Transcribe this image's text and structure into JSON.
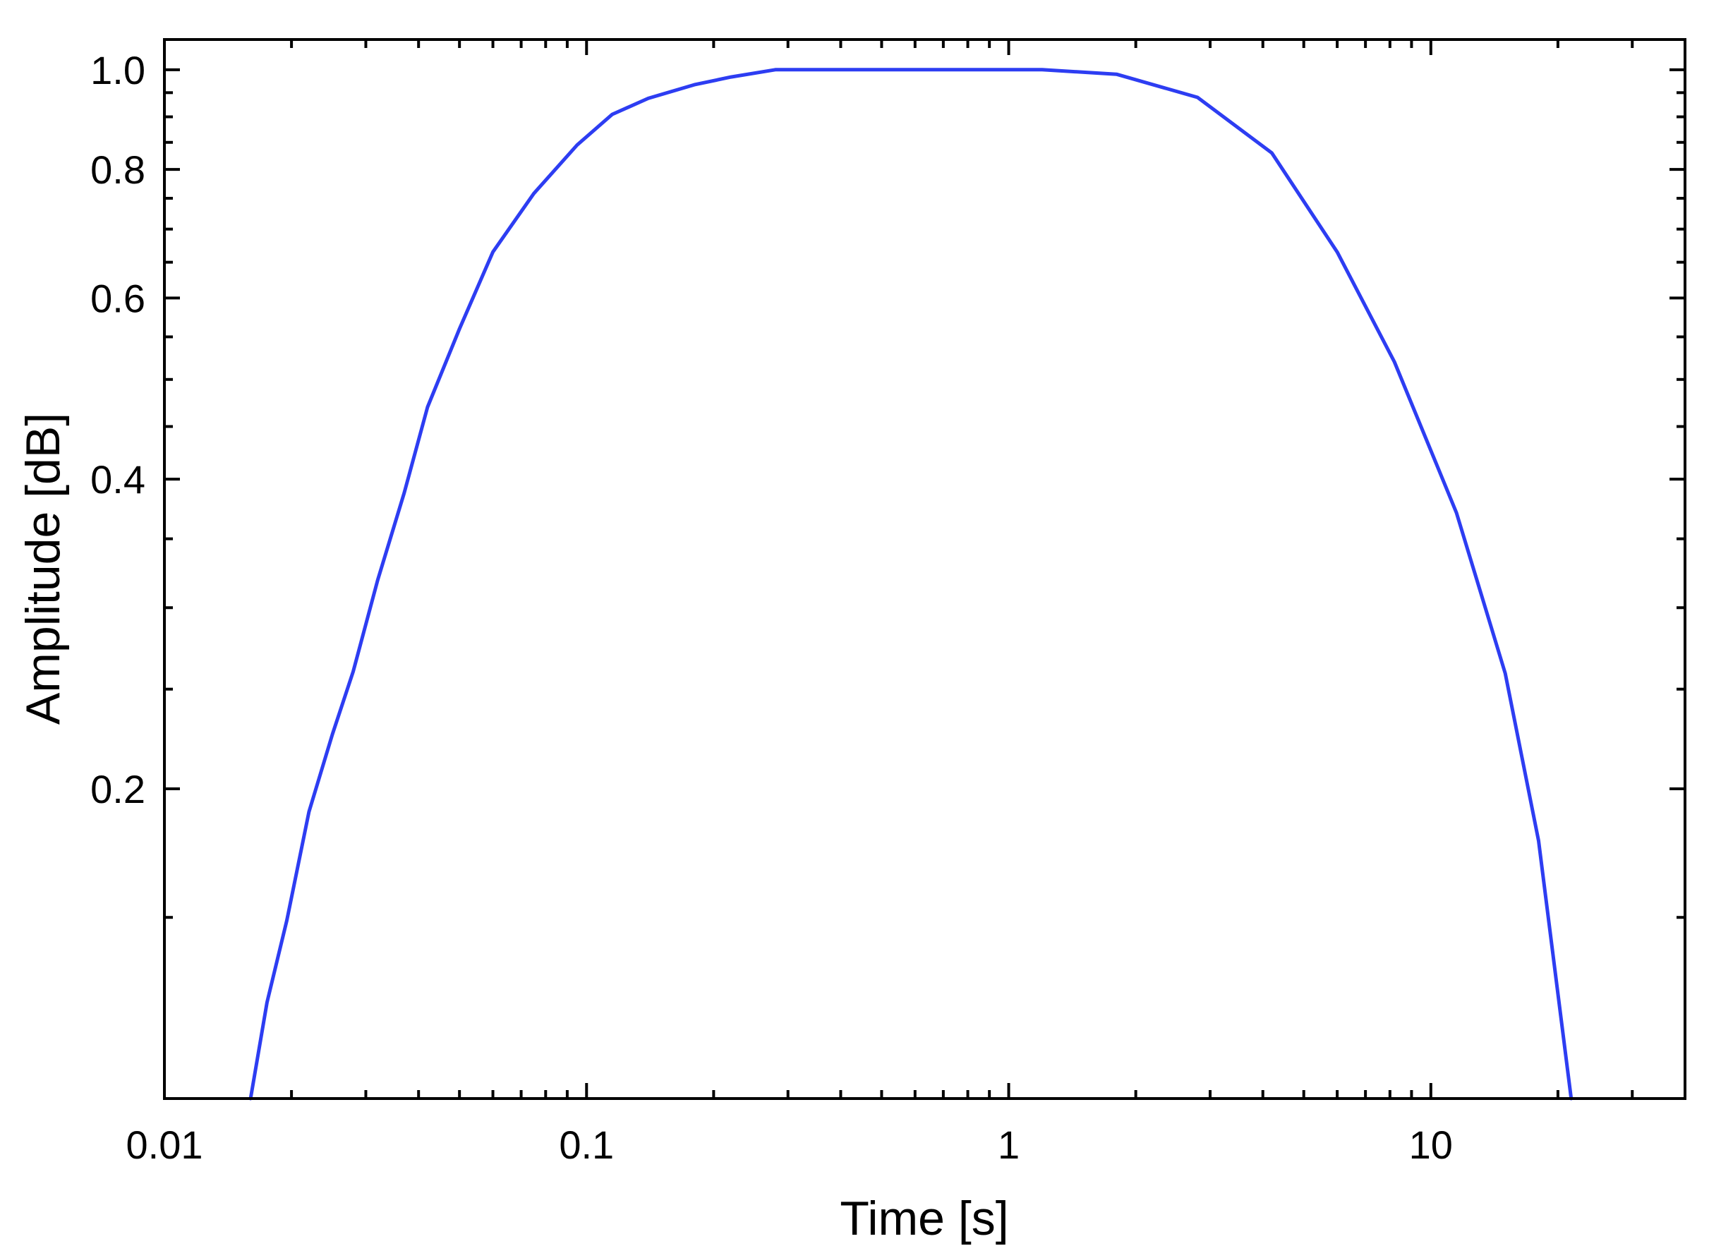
{
  "chart_data": {
    "type": "line",
    "title": "",
    "xlabel": "Time [s]",
    "ylabel": "Amplitude [dB]",
    "xscale": "log",
    "yscale": "log",
    "xlim": [
      0.01,
      40
    ],
    "ylim": [
      0.1,
      1.07
    ],
    "x_ticks": [
      {
        "value": 0.01,
        "label": "0.01"
      },
      {
        "value": 0.1,
        "label": "0.1"
      },
      {
        "value": 1,
        "label": "1"
      },
      {
        "value": 10,
        "label": "10"
      }
    ],
    "y_ticks": [
      {
        "value": 0.2,
        "label": "0.2"
      },
      {
        "value": 0.4,
        "label": "0.4"
      },
      {
        "value": 0.6,
        "label": "0.6"
      },
      {
        "value": 0.8,
        "label": "0.8"
      },
      {
        "value": 1.0,
        "label": "1.0"
      }
    ],
    "y_minor_ticks": [
      0.1,
      0.15,
      0.25,
      0.3,
      0.35,
      0.45,
      0.5,
      0.55,
      0.65,
      0.7,
      0.75,
      0.85,
      0.9,
      0.95
    ],
    "grid": false,
    "series": [
      {
        "color": "#2d3df2",
        "x": [
          0.016,
          0.0175,
          0.0195,
          0.022,
          0.025,
          0.028,
          0.032,
          0.037,
          0.042,
          0.05,
          0.06,
          0.075,
          0.095,
          0.115,
          0.14,
          0.18,
          0.22,
          0.28,
          0.5,
          0.8,
          1.2,
          1.8,
          2.8,
          4.2,
          6.0,
          8.2,
          11.5,
          15.0,
          18.0,
          21.5
        ],
        "values": [
          0.1,
          0.124,
          0.149,
          0.19,
          0.226,
          0.26,
          0.319,
          0.388,
          0.47,
          0.56,
          0.665,
          0.758,
          0.845,
          0.905,
          0.938,
          0.967,
          0.984,
          1.0,
          1.0,
          1.0,
          1.0,
          0.99,
          0.94,
          0.83,
          0.665,
          0.52,
          0.371,
          0.259,
          0.178,
          0.1
        ]
      }
    ]
  }
}
